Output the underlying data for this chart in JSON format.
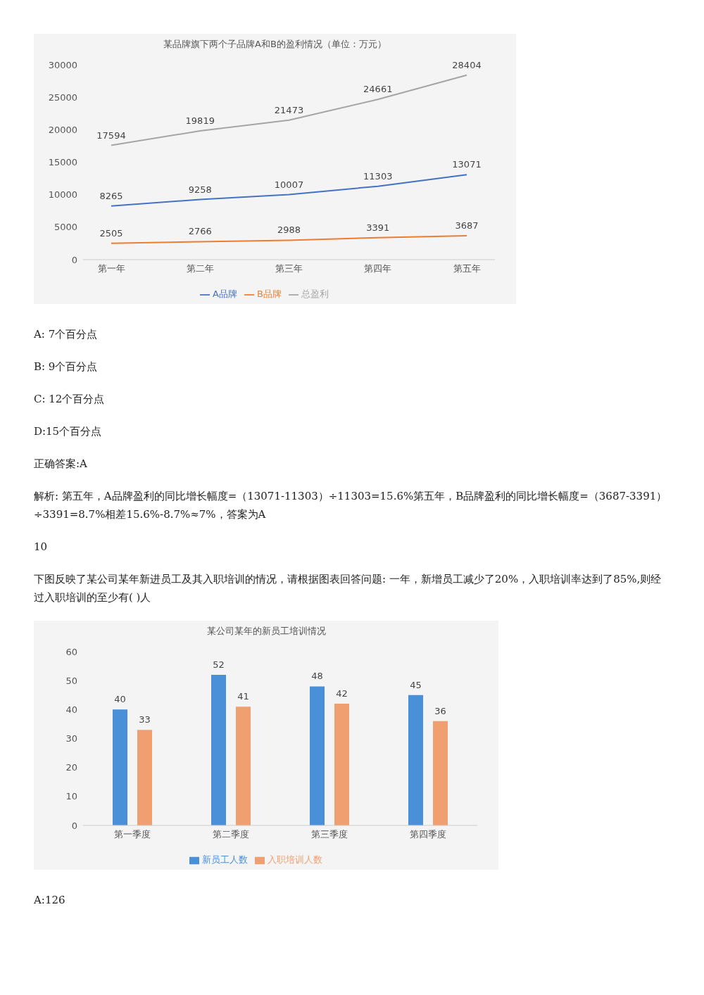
{
  "chart_data": [
    {
      "type": "line",
      "title": "某品牌旗下两个子品牌A和B的盈利情况（单位：万元）",
      "categories": [
        "第一年",
        "第二年",
        "第三年",
        "第四年",
        "第五年"
      ],
      "series": [
        {
          "name": "A品牌",
          "color": "#4472c4",
          "values": [
            8265,
            9258,
            10007,
            11303,
            13071
          ]
        },
        {
          "name": "B品牌",
          "color": "#ed7d31",
          "values": [
            2505,
            2766,
            2988,
            3391,
            3687
          ]
        },
        {
          "name": "总盈利",
          "color": "#a5a5a5",
          "values": [
            17594,
            19819,
            21473,
            24661,
            28404
          ]
        }
      ],
      "ylim": [
        0,
        30000
      ],
      "yticks": [
        0,
        5000,
        10000,
        15000,
        20000,
        25000,
        30000
      ],
      "data_labels": true,
      "legend": "bottom",
      "annotations": [
        "A: 7个百分点",
        "B: 9个百分点",
        "C: 12个百分点",
        "D:15个百分点",
        "正确答案:A",
        "解析: 第五年，A品牌盈利的同比增长幅度=（13071-11303）÷11303=15.6%第五年，B品牌盈利的同比增长幅度=（3687-3391）÷3391=8.7%相差15.6%-8.7%≈7%，答案为A",
        "10",
        "下图反映了某公司某年新进员工及其入职培训的情况，请根据图表回答问题: 一年，新增员工减少了20%，入职培训率达到了85%,则经过入职培训的至少有( )人"
      ]
    },
    {
      "type": "bar",
      "title": "某公司某年的新员工培训情况",
      "categories": [
        "第一季度",
        "第二季度",
        "第三季度",
        "第四季度"
      ],
      "series": [
        {
          "name": "新员工人数",
          "color": "#4a90d9",
          "values": [
            40,
            52,
            48,
            45
          ]
        },
        {
          "name": "入职培训人数",
          "color": "#f0a070",
          "values": [
            33,
            41,
            42,
            36
          ]
        }
      ],
      "ylim": [
        0,
        60
      ],
      "yticks": [
        0,
        10,
        20,
        30,
        40,
        50,
        60
      ],
      "data_labels": true,
      "legend": "bottom",
      "annotations": [
        "A:126"
      ]
    }
  ]
}
